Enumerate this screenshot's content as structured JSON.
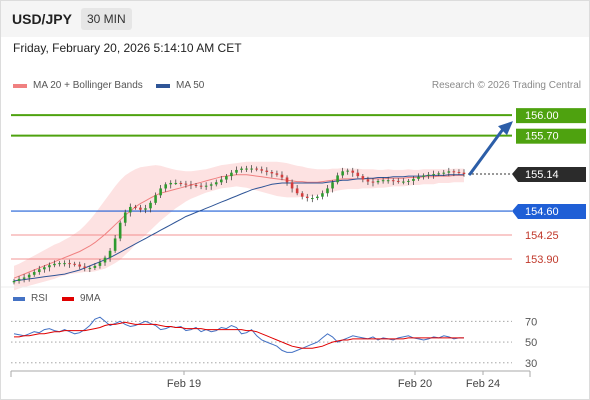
{
  "header": {
    "pair": "USD/JPY",
    "timeframe": "30 MIN"
  },
  "datetime": "Friday, February 20, 2026 5:14:10 AM CET",
  "legend": {
    "ma20": "MA 20 + Bollinger Bands",
    "ma20_color": "#f08080",
    "ma50": "MA 50",
    "ma50_color": "#2f5597"
  },
  "credit": "Research © 2026 Trading Central",
  "rsi_legend": {
    "rsi": "RSI",
    "rsi_color": "#4472c4",
    "ma": "9MA",
    "ma_color": "#e00000"
  },
  "chart_data": {
    "type": "candlestick",
    "ylim": [
      153.55,
      156.25
    ],
    "x_ticks": [
      "Feb 19",
      "Feb 20",
      "Feb 24"
    ],
    "current_price": {
      "label": "155.14",
      "value": 155.14
    },
    "levels": [
      {
        "label": "156.00",
        "value": 156.0,
        "kind": "resistance"
      },
      {
        "label": "155.70",
        "value": 155.7,
        "kind": "resistance"
      },
      {
        "label": "154.60",
        "value": 154.6,
        "kind": "pivot"
      },
      {
        "label": "154.25",
        "value": 154.25,
        "kind": "support"
      },
      {
        "label": "153.90",
        "value": 153.9,
        "kind": "support"
      }
    ],
    "close": [
      153.58,
      153.61,
      153.63,
      153.67,
      153.71,
      153.75,
      153.78,
      153.81,
      153.83,
      153.84,
      153.84,
      153.83,
      153.82,
      153.79,
      153.77,
      153.77,
      153.8,
      153.85,
      153.92,
      154.02,
      154.2,
      154.43,
      154.58,
      154.66,
      154.65,
      154.62,
      154.64,
      154.72,
      154.83,
      154.93,
      154.99,
      155.01,
      155.01,
      155.0,
      154.99,
      154.98,
      154.97,
      154.96,
      154.97,
      154.99,
      155.02,
      155.06,
      155.11,
      155.16,
      155.2,
      155.22,
      155.22,
      155.22,
      155.21,
      155.19,
      155.17,
      155.15,
      155.13,
      155.09,
      155.02,
      154.93,
      154.86,
      154.81,
      154.79,
      154.79,
      154.81,
      154.86,
      154.93,
      155.02,
      155.12,
      155.18,
      155.19,
      155.16,
      155.11,
      155.06,
      155.03,
      155.02,
      155.04,
      155.05,
      155.05,
      155.04,
      155.03,
      155.03,
      155.04,
      155.07,
      155.1,
      155.12,
      155.13,
      155.14,
      155.15,
      155.16,
      155.18,
      155.17,
      155.16,
      155.14
    ],
    "ma20": [
      153.62,
      153.65,
      153.68,
      153.71,
      153.74,
      153.77,
      153.8,
      153.83,
      153.86,
      153.89,
      153.92,
      153.95,
      153.98,
      154.01,
      154.05,
      154.09,
      154.14,
      154.2,
      154.26,
      154.33,
      154.4,
      154.47,
      154.54,
      154.6,
      154.66,
      154.71,
      154.75,
      154.79,
      154.83,
      154.86,
      154.88,
      154.9,
      154.92,
      154.94,
      154.96,
      154.98,
      155.0,
      155.02,
      155.04,
      155.06,
      155.08,
      155.1,
      155.11,
      155.12,
      155.13,
      155.13,
      155.13,
      155.12,
      155.11,
      155.1,
      155.09,
      155.08,
      155.07,
      155.06,
      155.05,
      155.04,
      155.03,
      155.03,
      155.02,
      155.02,
      155.02,
      155.03,
      155.04,
      155.05,
      155.06,
      155.07,
      155.07,
      155.07,
      155.07,
      155.07,
      155.07,
      155.07,
      155.07,
      155.07,
      155.08,
      155.08,
      155.08,
      155.08,
      155.09,
      155.09,
      155.09,
      155.1,
      155.1,
      155.1,
      155.11,
      155.11,
      155.11,
      155.12,
      155.12,
      155.12
    ],
    "ma50": [
      153.58,
      153.59,
      153.6,
      153.61,
      153.62,
      153.63,
      153.64,
      153.65,
      153.66,
      153.67,
      153.68,
      153.7,
      153.72,
      153.74,
      153.77,
      153.8,
      153.83,
      153.86,
      153.89,
      153.92,
      153.96,
      154.0,
      154.04,
      154.08,
      154.12,
      154.16,
      154.2,
      154.24,
      154.28,
      154.32,
      154.36,
      154.4,
      154.44,
      154.48,
      154.52,
      154.55,
      154.58,
      154.61,
      154.64,
      154.67,
      154.7,
      154.73,
      154.76,
      154.79,
      154.82,
      154.85,
      154.88,
      154.91,
      154.93,
      154.95,
      154.97,
      154.99,
      155.0,
      155.01,
      155.01,
      155.01,
      155.01,
      155.01,
      155.01,
      155.01,
      155.01,
      155.01,
      155.02,
      155.03,
      155.04,
      155.05,
      155.05,
      155.06,
      155.07,
      155.07,
      155.08,
      155.08,
      155.09,
      155.09,
      155.09,
      155.1,
      155.1,
      155.1,
      155.11,
      155.11,
      155.11,
      155.11,
      155.12,
      155.12,
      155.12,
      155.12,
      155.13,
      155.13,
      155.13,
      155.13
    ],
    "bb_width": [
      0.18,
      0.18,
      0.19,
      0.2,
      0.21,
      0.22,
      0.23,
      0.24,
      0.25,
      0.25,
      0.26,
      0.27,
      0.29,
      0.31,
      0.34,
      0.38,
      0.42,
      0.46,
      0.5,
      0.53,
      0.56,
      0.58,
      0.58,
      0.57,
      0.55,
      0.53,
      0.5,
      0.47,
      0.44,
      0.4,
      0.36,
      0.32,
      0.28,
      0.25,
      0.22,
      0.2,
      0.19,
      0.18,
      0.17,
      0.17,
      0.17,
      0.17,
      0.17,
      0.17,
      0.17,
      0.18,
      0.19,
      0.2,
      0.21,
      0.22,
      0.23,
      0.24,
      0.25,
      0.25,
      0.25,
      0.24,
      0.23,
      0.22,
      0.21,
      0.2,
      0.19,
      0.18,
      0.17,
      0.17,
      0.16,
      0.16,
      0.15,
      0.15,
      0.15,
      0.14,
      0.14,
      0.14,
      0.13,
      0.13,
      0.13,
      0.12,
      0.12,
      0.12,
      0.12,
      0.11,
      0.11,
      0.11,
      0.11,
      0.11,
      0.1,
      0.1,
      0.1,
      0.1,
      0.1,
      0.1
    ],
    "rsi": {
      "ylim": [
        25,
        78
      ],
      "levels": [
        {
          "label": "70",
          "value": 70
        },
        {
          "label": "50",
          "value": 50
        },
        {
          "label": "30",
          "value": 30
        }
      ],
      "values": [
        58,
        57,
        56,
        58,
        60,
        59,
        62,
        63,
        61,
        60,
        62,
        60,
        58,
        59,
        62,
        66,
        72,
        74,
        70,
        66,
        68,
        70,
        67,
        65,
        66,
        68,
        70,
        68,
        66,
        62,
        63,
        65,
        64,
        65,
        61,
        62,
        64,
        60,
        62,
        60,
        61,
        64,
        63,
        66,
        64,
        58,
        59,
        62,
        56,
        52,
        50,
        48,
        46,
        42,
        40,
        40,
        42,
        44,
        46,
        48,
        50,
        54,
        58,
        55,
        50,
        52,
        54,
        56,
        55,
        54,
        53,
        55,
        52,
        54,
        53,
        52,
        54,
        55,
        56,
        54,
        53,
        52,
        53,
        55,
        54,
        56,
        55,
        53,
        54,
        54
      ],
      "ma9": [
        55,
        55,
        56,
        56,
        57,
        58,
        58,
        59,
        60,
        60,
        61,
        61,
        61,
        61,
        61,
        62,
        63,
        64,
        66,
        67,
        67,
        68,
        69,
        68,
        67,
        67,
        67,
        67,
        67,
        66,
        65,
        65,
        64,
        64,
        63,
        63,
        63,
        63,
        62,
        62,
        62,
        62,
        62,
        62,
        62,
        62,
        61,
        61,
        60,
        58,
        56,
        54,
        52,
        50,
        48,
        46,
        45,
        44,
        44,
        44,
        45,
        46,
        48,
        50,
        51,
        52,
        52,
        53,
        53,
        53,
        53,
        53,
        53,
        53,
        53,
        53,
        53,
        53,
        54,
        54,
        54,
        54,
        54,
        54,
        54,
        54,
        54,
        54,
        54,
        54
      ]
    }
  }
}
